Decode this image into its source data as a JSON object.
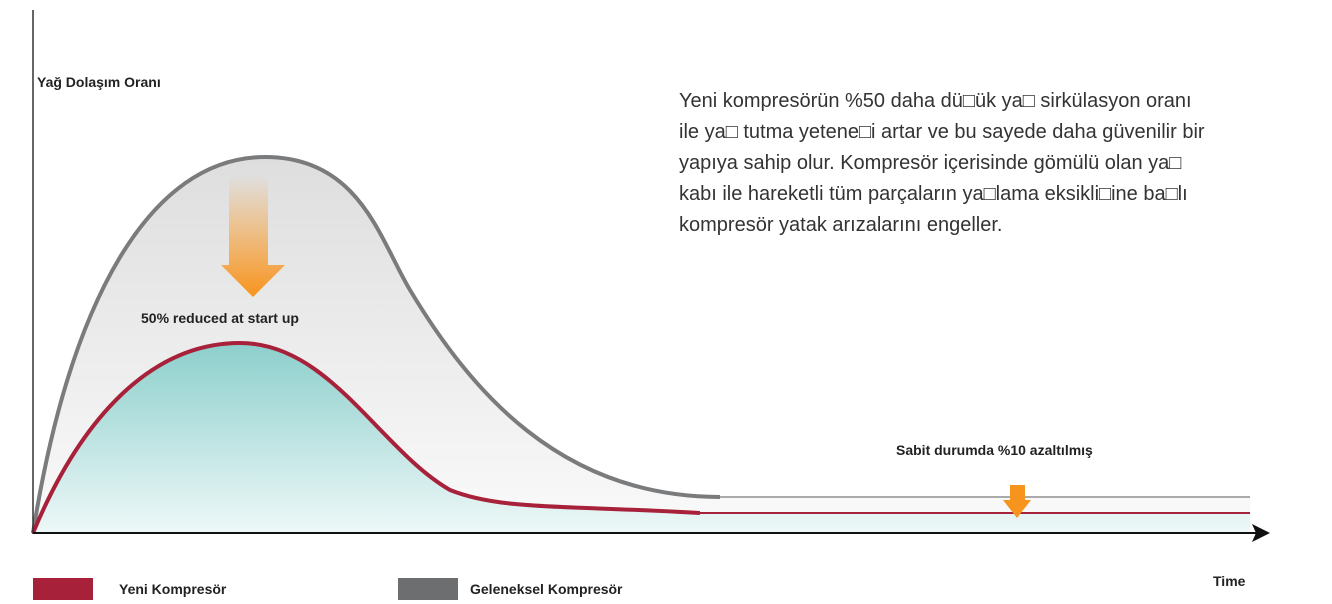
{
  "diagram": {
    "y_axis_label": "Yağ Dolaşım Oranı",
    "x_axis_label": "Time",
    "description": [
      "Yeni kompresörün %50 daha dü□ük ya□ sirkülasyon oranı",
      "ile ya□ tutma yetene□i artar ve bu sayede daha güvenilir bir",
      "yapıya sahip olur. Kompresör içerisinde gömülü olan ya□",
      "kabı ile hareketli tüm parçaların ya□lama eksikli□ine ba□lı",
      "kompresör yatak arızalarını engeller."
    ],
    "annotations": [
      "50% reduced at start up",
      "Sabit durumda %10 azaltılmış"
    ],
    "legend": [
      {
        "name": "Yeni Kompresör",
        "color": "#a8213a"
      },
      {
        "name": "Geleneksel Kompresör",
        "color": "#6d6e70"
      }
    ]
  }
}
